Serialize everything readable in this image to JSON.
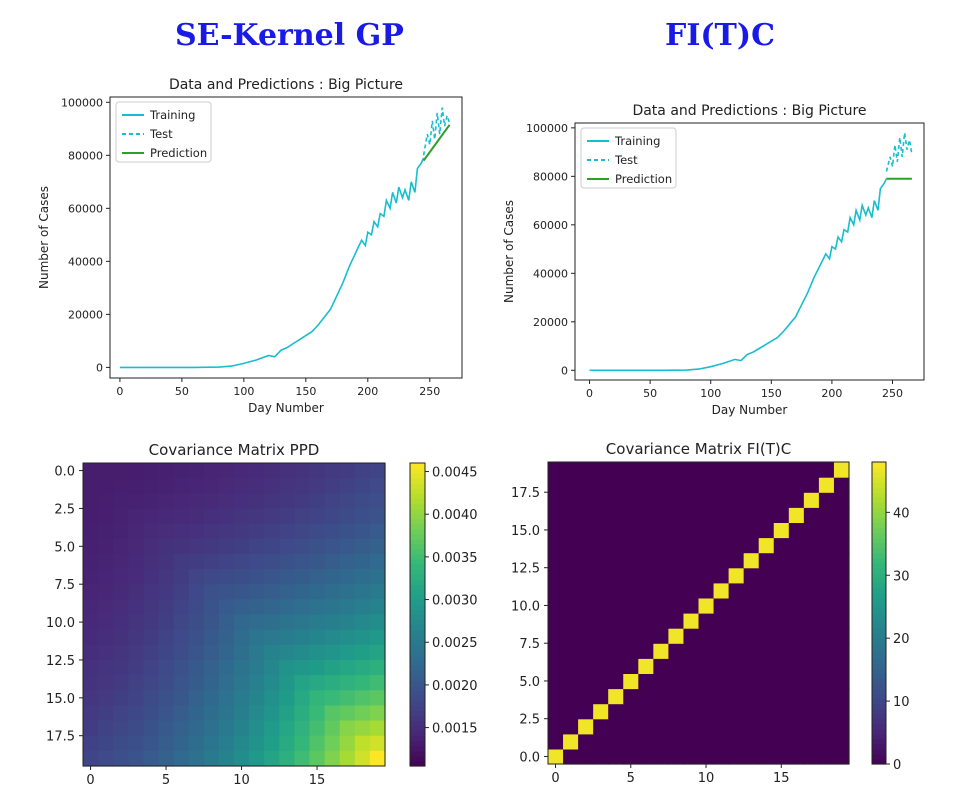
{
  "columns": [
    {
      "title": "SE-Kernel GP"
    },
    {
      "title": "FI(T)C"
    }
  ],
  "colors": {
    "heading": "#1a1ae6",
    "training": "#17becf",
    "test": "#17becf",
    "prediction": "#2ca02c",
    "viridis": [
      "#440154",
      "#482878",
      "#3e4a89",
      "#31688e",
      "#26828e",
      "#1f9e89",
      "#35b779",
      "#6ece58",
      "#b5de2b",
      "#fde725"
    ]
  },
  "chart_data": [
    {
      "type": "line",
      "title": "Data and Predictions : Big Picture",
      "xlabel": "Day Number",
      "ylabel": "Number of Cases",
      "xlim": [
        -8,
        276
      ],
      "ylim": [
        -4000,
        102000
      ],
      "xticks": [
        0,
        50,
        100,
        150,
        200,
        250
      ],
      "yticks": [
        0,
        20000,
        40000,
        60000,
        80000,
        100000
      ],
      "legend": [
        "Training",
        "Test",
        "Prediction"
      ],
      "legend_position": "top-left",
      "grid": false,
      "series": [
        {
          "name": "Training",
          "style": "solid",
          "x": [
            0,
            20,
            40,
            60,
            80,
            90,
            100,
            110,
            120,
            125,
            130,
            135,
            140,
            145,
            150,
            155,
            160,
            165,
            170,
            175,
            180,
            185,
            190,
            195,
            198,
            200,
            203,
            205,
            208,
            210,
            213,
            215,
            218,
            220,
            223,
            225,
            228,
            230,
            233,
            235,
            238,
            240,
            243,
            245
          ],
          "y": [
            0,
            0,
            0,
            0,
            100,
            500,
            1500,
            2800,
            4500,
            4000,
            6500,
            7500,
            9000,
            10500,
            12000,
            13500,
            16000,
            19000,
            22000,
            27000,
            32000,
            38000,
            43000,
            48000,
            46000,
            51000,
            50000,
            55000,
            53000,
            58000,
            57000,
            63000,
            60000,
            66000,
            62000,
            68000,
            64000,
            67000,
            63000,
            70000,
            66000,
            75000,
            77000,
            79000
          ]
        },
        {
          "name": "Test",
          "style": "dashed",
          "x": [
            245,
            248,
            250,
            252,
            254,
            256,
            258,
            260,
            262,
            264,
            266
          ],
          "y": [
            80000,
            88000,
            84000,
            93000,
            86000,
            96000,
            88000,
            98000,
            91000,
            95000,
            92000
          ]
        },
        {
          "name": "Prediction",
          "style": "solid",
          "x": [
            245,
            266
          ],
          "y": [
            78000,
            91500
          ]
        }
      ]
    },
    {
      "type": "line",
      "title": "Data and Predictions : Big Picture",
      "xlabel": "Day Number",
      "ylabel": "Number of Cases",
      "xlim": [
        -12,
        276
      ],
      "ylim": [
        -4000,
        102000
      ],
      "xticks": [
        0,
        50,
        100,
        150,
        200,
        250
      ],
      "yticks": [
        0,
        20000,
        40000,
        60000,
        80000,
        100000
      ],
      "legend": [
        "Training",
        "Test",
        "Prediction"
      ],
      "legend_position": "top-left",
      "grid": false,
      "series": [
        {
          "name": "Training",
          "style": "solid",
          "x": [
            0,
            20,
            40,
            60,
            80,
            90,
            100,
            110,
            120,
            125,
            130,
            135,
            140,
            145,
            150,
            155,
            160,
            165,
            170,
            175,
            180,
            185,
            190,
            195,
            198,
            200,
            203,
            205,
            208,
            210,
            213,
            215,
            218,
            220,
            223,
            225,
            228,
            230,
            233,
            235,
            238,
            240,
            243,
            245
          ],
          "y": [
            0,
            0,
            0,
            0,
            100,
            500,
            1500,
            2800,
            4500,
            4000,
            6500,
            7500,
            9000,
            10500,
            12000,
            13500,
            16000,
            19000,
            22000,
            27000,
            32000,
            38000,
            43000,
            48000,
            46000,
            51000,
            50000,
            55000,
            53000,
            58000,
            57000,
            63000,
            60000,
            66000,
            62000,
            68000,
            64000,
            67000,
            63000,
            70000,
            66000,
            75000,
            77000,
            79000
          ]
        },
        {
          "name": "Test",
          "style": "dashed",
          "x": [
            245,
            248,
            250,
            252,
            254,
            256,
            258,
            260,
            262,
            264,
            266
          ],
          "y": [
            82000,
            88000,
            84000,
            93000,
            86000,
            96000,
            88000,
            98000,
            91000,
            95000,
            89000
          ]
        },
        {
          "name": "Prediction",
          "style": "solid",
          "x": [
            245,
            266
          ],
          "y": [
            79000,
            79000
          ]
        }
      ]
    },
    {
      "type": "heatmap",
      "title": "Covariance Matrix PPD",
      "pattern": "ppd",
      "n": 20,
      "origin": "upper",
      "xticks": [
        0,
        5,
        10,
        15
      ],
      "yticks": [
        0.0,
        2.5,
        5.0,
        7.5,
        10.0,
        12.5,
        15.0,
        17.5
      ],
      "ytick_labels": [
        "0.0",
        "2.5",
        "5.0",
        "7.5",
        "10.0",
        "12.5",
        "15.0",
        "17.5"
      ],
      "vmin": 0.00105,
      "vmax": 0.0046,
      "colorbar_ticks": [
        0.0015,
        0.002,
        0.0025,
        0.003,
        0.0035,
        0.004,
        0.0045
      ],
      "colorbar_labels": [
        "0.0015",
        "0.0020",
        "0.0025",
        "0.0030",
        "0.0035",
        "0.0040",
        "0.0045"
      ]
    },
    {
      "type": "heatmap",
      "title": "Covariance Matrix FI(T)C",
      "pattern": "diagonal",
      "n": 20,
      "origin": "lower",
      "diag_value": 47,
      "off_value": 0,
      "xticks": [
        0,
        5,
        10,
        15
      ],
      "yticks": [
        0.0,
        2.5,
        5.0,
        7.5,
        10.0,
        12.5,
        15.0,
        17.5
      ],
      "ytick_labels": [
        "0.0",
        "2.5",
        "5.0",
        "7.5",
        "10.0",
        "12.5",
        "15.0",
        "17.5"
      ],
      "vmin": 0,
      "vmax": 48,
      "colorbar_ticks": [
        0,
        10,
        20,
        30,
        40
      ],
      "colorbar_labels": [
        "0",
        "10",
        "20",
        "30",
        "40"
      ]
    }
  ]
}
